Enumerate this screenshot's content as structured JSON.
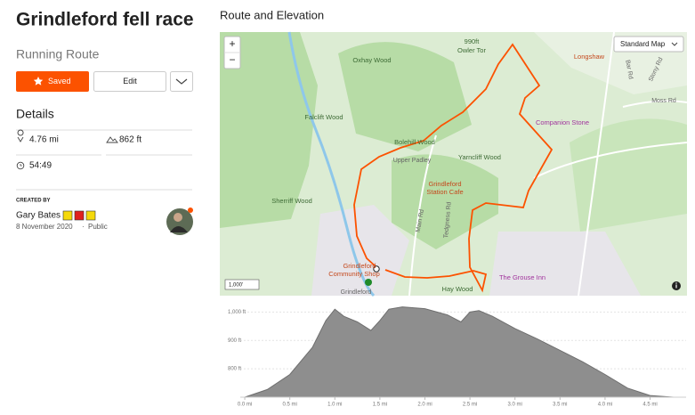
{
  "header": {
    "title": "Grindleford fell race",
    "subtitle": "Running Route",
    "buttons": {
      "saved": "Saved",
      "edit": "Edit"
    }
  },
  "details": {
    "heading": "Details",
    "distance": "4.76 mi",
    "elevation_gain": "862 ft",
    "time": "54:49"
  },
  "creator": {
    "label": "CREATED BY",
    "name": "Gary Bates",
    "date": "8 November 2020",
    "separator": "·",
    "visibility": "Public"
  },
  "section_title": "Route and Elevation",
  "map": {
    "style": "Standard Map",
    "zoom_in": "+",
    "zoom_out": "−",
    "scale": "1,000'",
    "labels": [
      "Oxhay Wood",
      "990ft",
      "Owler Tor",
      "Longshaw",
      "Falclift Wood",
      "Bolehill Wood",
      "Upper Padley",
      "Yarncliff Wood",
      "Companion Stone",
      "Grindleford",
      "Station Cafe",
      "Sherriff Wood",
      "Grindleford",
      "Community Shop",
      "Hay Wood",
      "Grindleford",
      "The Grouse Inn",
      "Main Rd",
      "Tedgness Rd",
      "Moss Rd",
      "Bar Rd",
      "Stony Rd"
    ]
  },
  "chart_data": {
    "type": "area",
    "x": [
      0,
      0.25,
      0.5,
      0.75,
      0.9,
      1.0,
      1.1,
      1.25,
      1.4,
      1.5,
      1.6,
      1.75,
      2.0,
      2.25,
      2.4,
      2.5,
      2.6,
      2.75,
      3.0,
      3.25,
      3.5,
      3.75,
      4.0,
      4.25,
      4.5,
      4.76
    ],
    "values": [
      700,
      727,
      780,
      875,
      970,
      1010,
      985,
      965,
      935,
      970,
      1010,
      1018,
      1012,
      990,
      965,
      1000,
      1005,
      985,
      942,
      905,
      865,
      825,
      780,
      732,
      706,
      700
    ],
    "color": "#8e8e8e",
    "grid": true,
    "xlim": [
      -0.05,
      4.9
    ],
    "ylim": [
      700,
      1020
    ],
    "xticks": [
      {
        "value": 0,
        "label": "0.0 mi"
      },
      {
        "value": 0.5,
        "label": "0.5 mi"
      },
      {
        "value": 1,
        "label": "1.0 mi"
      },
      {
        "value": 1.5,
        "label": "1.5 mi"
      },
      {
        "value": 2,
        "label": "2.0 mi"
      },
      {
        "value": 2.5,
        "label": "2.5 mi"
      },
      {
        "value": 3,
        "label": "3.0 mi"
      },
      {
        "value": 3.5,
        "label": "3.5 mi"
      },
      {
        "value": 4,
        "label": "4.0 mi"
      },
      {
        "value": 4.5,
        "label": "4.5 mi"
      }
    ],
    "yticks": [
      {
        "value": 800,
        "label": "800 ft"
      },
      {
        "value": 900,
        "label": "900 ft"
      },
      {
        "value": 1000,
        "label": "1,000 ft"
      }
    ]
  }
}
